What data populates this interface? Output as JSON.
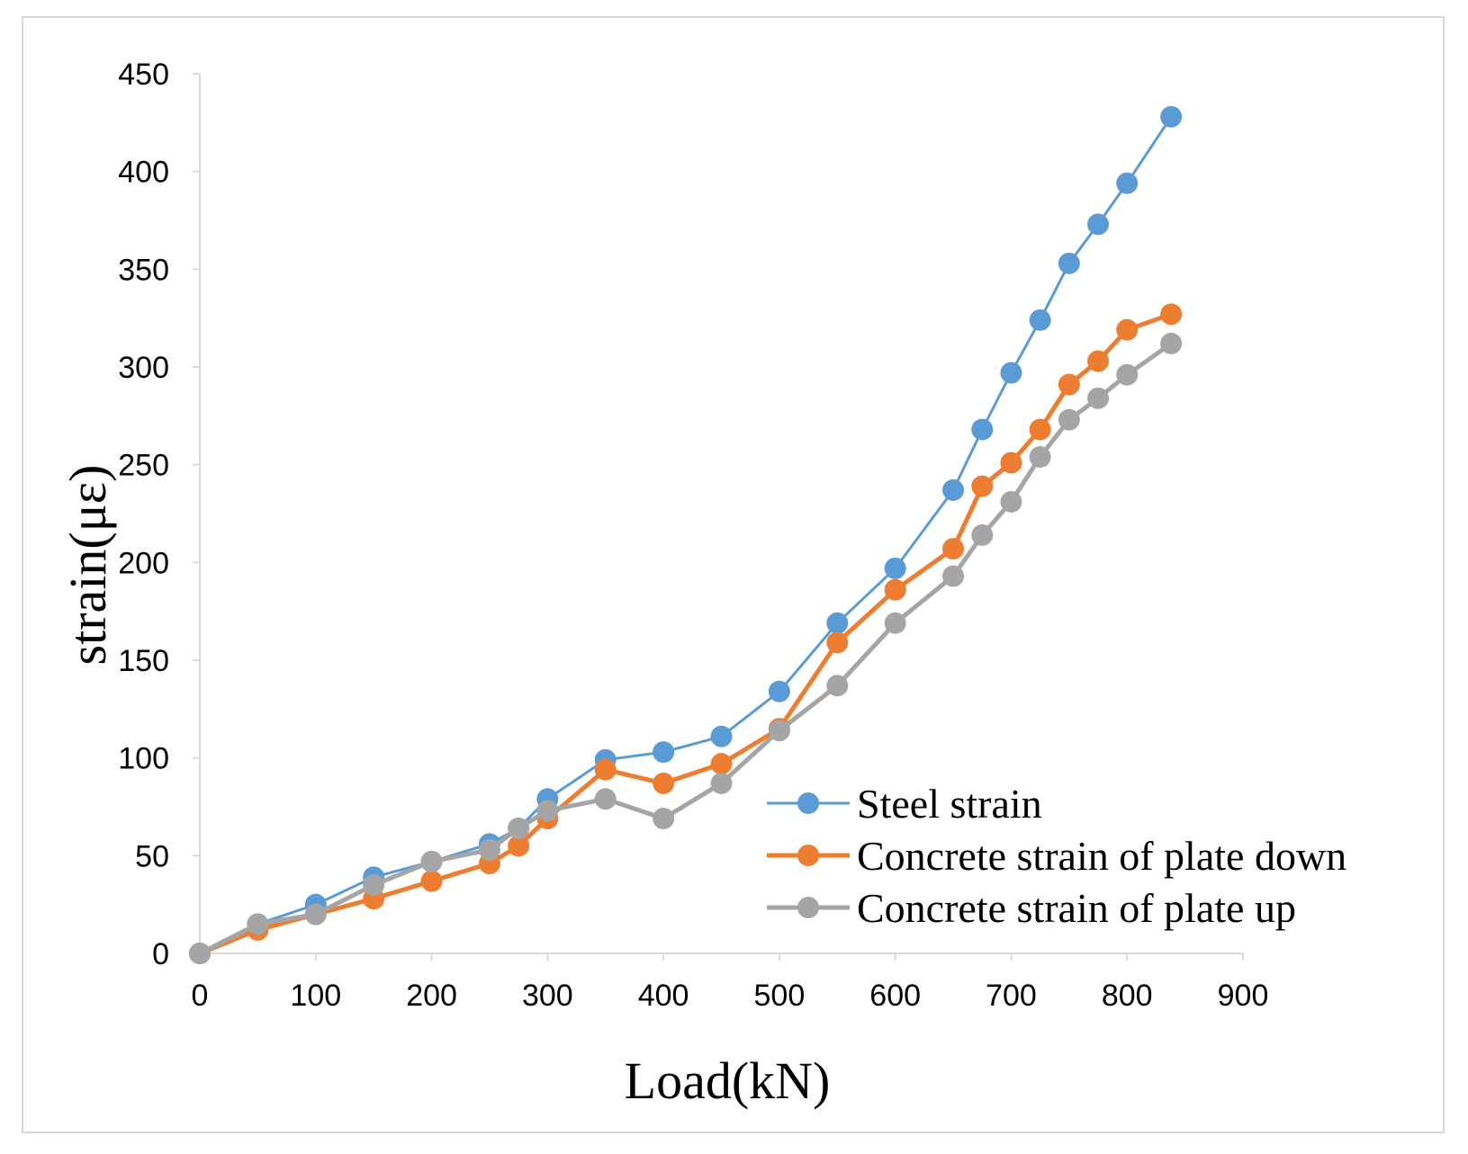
{
  "chart_data": {
    "type": "line",
    "title": "",
    "xlabel": "Load(kN)",
    "ylabel": "strain(με)",
    "xlim": [
      0,
      900
    ],
    "ylim": [
      0,
      450
    ],
    "xticks": [
      0,
      100,
      200,
      300,
      400,
      500,
      600,
      700,
      800,
      900
    ],
    "yticks": [
      0,
      50,
      100,
      150,
      200,
      250,
      300,
      350,
      400,
      450
    ],
    "grid": false,
    "legend_position": "bottom-right",
    "x": [
      0,
      50,
      100,
      150,
      200,
      250,
      275,
      300,
      350,
      400,
      450,
      500,
      550,
      600,
      650,
      675,
      700,
      725,
      750,
      775,
      800,
      838
    ],
    "series": [
      {
        "name": "Steel strain",
        "color": "#5b9bd5",
        "values": [
          0,
          15,
          25,
          39,
          47,
          56,
          64,
          79,
          99,
          103,
          111,
          134,
          169,
          197,
          237,
          268,
          297,
          324,
          353,
          373,
          394,
          428
        ]
      },
      {
        "name": "Concrete strain of plate down",
        "color": "#ed7d31",
        "values": [
          0,
          12,
          20,
          28,
          37,
          46,
          55,
          69,
          94,
          87,
          97,
          115,
          159,
          186,
          207,
          239,
          251,
          268,
          291,
          303,
          319,
          327
        ]
      },
      {
        "name": "Concrete strain of plate up",
        "color": "#a5a5a5",
        "values": [
          0,
          15,
          20,
          35,
          47,
          53,
          64,
          73,
          79,
          69,
          87,
          114,
          137,
          169,
          193,
          214,
          231,
          254,
          273,
          284,
          296,
          312
        ]
      }
    ]
  }
}
